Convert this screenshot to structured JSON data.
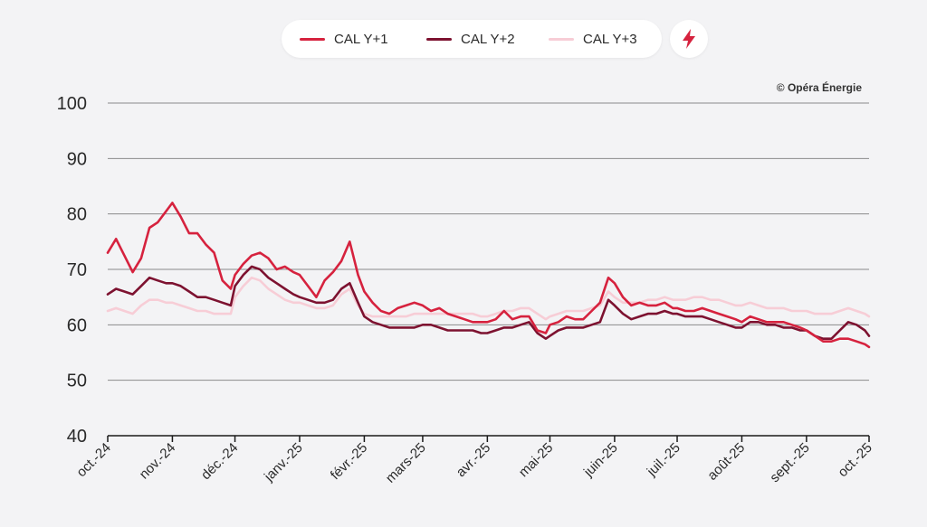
{
  "copyright": "© Opéra Énergie",
  "energy_icon": "lightning-bolt-icon",
  "colors": {
    "cal_y1": "#d6223e",
    "cal_y2": "#7d1230",
    "cal_y3": "#f7cdd6",
    "grid": "#8a8a8a",
    "background": "#f3f3f5"
  },
  "legend": [
    {
      "label": "CAL Y+1",
      "color": "#d6223e"
    },
    {
      "label": "CAL Y+2",
      "color": "#7d1230"
    },
    {
      "label": "CAL Y+3",
      "color": "#f7cdd6"
    }
  ],
  "chart_data": {
    "type": "line",
    "title": "",
    "xlabel": "",
    "ylabel": "",
    "ylim": [
      40,
      100
    ],
    "yticks": [
      40,
      50,
      60,
      70,
      80,
      90,
      100
    ],
    "grid": true,
    "legend_position": "top-center",
    "xlim": [
      "2024-10-01",
      "2025-10-01"
    ],
    "x_tick_labels": [
      "oct.-24",
      "nov.-24",
      "déc.-24",
      "janv.-25",
      "févr.-25",
      "mars-25",
      "avr.-25",
      "mai-25",
      "juin-25",
      "juil.-25",
      "août-25",
      "sept.-25",
      "oct.-25"
    ],
    "x_tick_dates": [
      "2024-10-01",
      "2024-11-01",
      "2024-12-01",
      "2025-01-01",
      "2025-02-01",
      "2025-03-01",
      "2025-04-01",
      "2025-05-01",
      "2025-06-01",
      "2025-07-01",
      "2025-08-01",
      "2025-09-01",
      "2025-10-01"
    ],
    "x": [
      "2024-10-01",
      "2024-10-05",
      "2024-10-09",
      "2024-10-13",
      "2024-10-17",
      "2024-10-21",
      "2024-10-25",
      "2024-10-29",
      "2024-11-01",
      "2024-11-05",
      "2024-11-09",
      "2024-11-13",
      "2024-11-17",
      "2024-11-21",
      "2024-11-25",
      "2024-11-29",
      "2024-12-01",
      "2024-12-05",
      "2024-12-09",
      "2024-12-13",
      "2024-12-17",
      "2024-12-21",
      "2024-12-25",
      "2024-12-29",
      "2025-01-01",
      "2025-01-05",
      "2025-01-09",
      "2025-01-13",
      "2025-01-17",
      "2025-01-21",
      "2025-01-25",
      "2025-01-29",
      "2025-02-01",
      "2025-02-05",
      "2025-02-09",
      "2025-02-13",
      "2025-02-17",
      "2025-02-21",
      "2025-02-25",
      "2025-03-01",
      "2025-03-05",
      "2025-03-09",
      "2025-03-13",
      "2025-03-17",
      "2025-03-21",
      "2025-03-25",
      "2025-03-29",
      "2025-04-01",
      "2025-04-05",
      "2025-04-09",
      "2025-04-13",
      "2025-04-17",
      "2025-04-21",
      "2025-04-25",
      "2025-04-29",
      "2025-05-01",
      "2025-05-05",
      "2025-05-09",
      "2025-05-13",
      "2025-05-17",
      "2025-05-21",
      "2025-05-25",
      "2025-05-29",
      "2025-06-01",
      "2025-06-05",
      "2025-06-09",
      "2025-06-13",
      "2025-06-17",
      "2025-06-21",
      "2025-06-25",
      "2025-06-29",
      "2025-07-01",
      "2025-07-05",
      "2025-07-09",
      "2025-07-13",
      "2025-07-17",
      "2025-07-21",
      "2025-07-25",
      "2025-07-29",
      "2025-08-01",
      "2025-08-05",
      "2025-08-09",
      "2025-08-13",
      "2025-08-17",
      "2025-08-21",
      "2025-08-25",
      "2025-08-29",
      "2025-09-01",
      "2025-09-05",
      "2025-09-09",
      "2025-09-13",
      "2025-09-17",
      "2025-09-21",
      "2025-09-25",
      "2025-09-29",
      "2025-10-01"
    ],
    "series": [
      {
        "name": "CAL Y+1",
        "color": "#d6223e",
        "values": [
          73,
          75.5,
          72.5,
          69.5,
          72,
          77.5,
          78.5,
          80.5,
          82,
          79.5,
          76.5,
          76.5,
          74.5,
          73,
          68,
          66.5,
          69,
          71,
          72.5,
          73,
          72,
          70,
          70.5,
          69.5,
          69,
          67,
          65,
          68,
          69.5,
          71.5,
          75,
          69,
          66,
          64,
          62.5,
          62,
          63,
          63.5,
          64,
          63.5,
          62.5,
          63,
          62,
          61.5,
          61,
          60.5,
          60.5,
          60.5,
          61,
          62.5,
          61,
          61.5,
          61.5,
          59,
          58.5,
          60,
          60.5,
          61.5,
          61,
          61,
          62.5,
          64,
          68.5,
          67.5,
          65,
          63.5,
          64,
          63.5,
          63.5,
          64,
          63,
          63,
          62.5,
          62.5,
          63,
          62.5,
          62,
          61.5,
          61,
          60.5,
          61.5,
          61,
          60.5,
          60.5,
          60.5,
          60,
          59.5,
          59,
          58,
          57,
          57,
          57.5,
          57.5,
          57,
          56.5,
          56
        ]
      },
      {
        "name": "CAL Y+2",
        "color": "#7d1230",
        "values": [
          65.5,
          66.5,
          66,
          65.5,
          67,
          68.5,
          68,
          67.5,
          67.5,
          67,
          66,
          65,
          65,
          64.5,
          64,
          63.5,
          67,
          69,
          70.5,
          70,
          68.5,
          67.5,
          66.5,
          65.5,
          65,
          64.5,
          64,
          64,
          64.5,
          66.5,
          67.5,
          64,
          61.5,
          60.5,
          60,
          59.5,
          59.5,
          59.5,
          59.5,
          60,
          60,
          59.5,
          59,
          59,
          59,
          59,
          58.5,
          58.5,
          59,
          59.5,
          59.5,
          60,
          60.5,
          58.5,
          57.5,
          58,
          59,
          59.5,
          59.5,
          59.5,
          60,
          60.5,
          64.5,
          63.5,
          62,
          61,
          61.5,
          62,
          62,
          62.5,
          62,
          62,
          61.5,
          61.5,
          61.5,
          61,
          60.5,
          60,
          59.5,
          59.5,
          60.5,
          60.5,
          60,
          60,
          59.5,
          59.5,
          59,
          59,
          58,
          57.5,
          57.5,
          59,
          60.5,
          60,
          59,
          58
        ]
      },
      {
        "name": "CAL Y+3",
        "color": "#f7cdd6",
        "values": [
          62.5,
          63,
          62.5,
          62,
          63.5,
          64.5,
          64.5,
          64,
          64,
          63.5,
          63,
          62.5,
          62.5,
          62,
          62,
          62,
          65,
          67,
          68.5,
          68,
          66.5,
          65.5,
          64.5,
          64,
          64,
          63.5,
          63,
          63,
          63.5,
          65.5,
          66.5,
          63.5,
          62,
          61.5,
          61.5,
          61.5,
          61.5,
          61.5,
          62,
          62,
          62,
          62,
          62,
          62,
          62,
          62,
          61.5,
          61.5,
          62,
          62.5,
          62.5,
          63,
          63,
          62,
          61,
          61.5,
          62,
          62.5,
          62.5,
          62.5,
          63,
          63.5,
          66,
          65,
          64,
          64,
          64,
          64.5,
          64.5,
          65,
          64.5,
          64.5,
          64.5,
          65,
          65,
          64.5,
          64.5,
          64,
          63.5,
          63.5,
          64,
          63.5,
          63,
          63,
          63,
          62.5,
          62.5,
          62.5,
          62,
          62,
          62,
          62.5,
          63,
          62.5,
          62,
          61.5
        ]
      }
    ]
  }
}
